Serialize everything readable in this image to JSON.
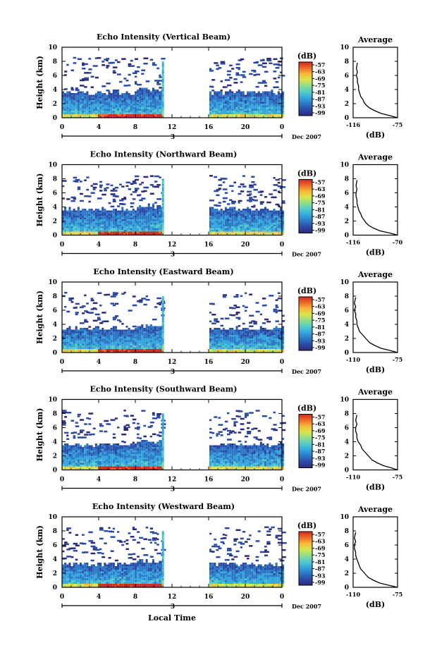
{
  "chart_data": [
    {
      "type": "heatmap",
      "title": "Echo Intensity (Vertical Beam)",
      "ylabel": "Height (km)",
      "xlabel": "",
      "x_ticks": [
        "0",
        "4",
        "8",
        "12",
        "16",
        "20",
        "0"
      ],
      "xlim": [
        0,
        24
      ],
      "y_ticks": [
        "0",
        "2",
        "4",
        "6",
        "8",
        "10"
      ],
      "ylim": [
        0,
        10
      ],
      "date_marker": "3",
      "date_label": "Dec 2007",
      "colorbar_unit": "(dB)",
      "colorbar_ticks": [
        "-57",
        "-63",
        "-69",
        "-75",
        "-81",
        "-87",
        "-93",
        "-99"
      ],
      "data_gap_hours": [
        11,
        16
      ],
      "echo_top_km": 3.5,
      "average_profile": {
        "title": "Average",
        "xlabel": "(dB)",
        "x_ticks": [
          "-116",
          "-75"
        ],
        "xlim": [
          -116,
          -75
        ],
        "y_ticks": [
          "0",
          "2",
          "4",
          "6",
          "8",
          "10"
        ],
        "ylim": [
          0,
          10
        ],
        "x": [
          -75,
          -82,
          -90,
          -96,
          -101,
          -104,
          -106,
          -107,
          -109,
          -110,
          -111,
          -111,
          -112,
          -112,
          -113,
          -112,
          -113,
          -112
        ],
        "y": [
          0.0,
          0.3,
          0.6,
          1.0,
          1.4,
          1.8,
          2.2,
          2.6,
          3.0,
          3.5,
          4.0,
          4.5,
          5.0,
          5.5,
          6.0,
          6.5,
          7.0,
          7.8
        ]
      }
    },
    {
      "type": "heatmap",
      "title": "Echo Intensity (Northward Beam)",
      "ylabel": "Height (km)",
      "xlabel": "",
      "x_ticks": [
        "0",
        "4",
        "8",
        "12",
        "16",
        "20",
        "0"
      ],
      "xlim": [
        0,
        24
      ],
      "y_ticks": [
        "0",
        "2",
        "4",
        "6",
        "8",
        "10"
      ],
      "ylim": [
        0,
        10
      ],
      "date_marker": "3",
      "date_label": "Dec 2007",
      "colorbar_unit": "(dB)",
      "colorbar_ticks": [
        "-57",
        "-63",
        "-69",
        "-75",
        "-81",
        "-87",
        "-93",
        "-99"
      ],
      "data_gap_hours": [
        11,
        16
      ],
      "echo_top_km": 3.6,
      "average_profile": {
        "title": "Average",
        "xlabel": "(dB)",
        "x_ticks": [
          "-116",
          "-70"
        ],
        "xlim": [
          -116,
          -70
        ],
        "y_ticks": [
          "0",
          "2",
          "4",
          "6",
          "8",
          "10"
        ],
        "ylim": [
          0,
          10
        ],
        "x": [
          -70,
          -78,
          -88,
          -95,
          -100,
          -103,
          -105,
          -107,
          -108,
          -110,
          -111,
          -112,
          -112,
          -113,
          -113,
          -112,
          -113,
          -112
        ],
        "y": [
          0.0,
          0.3,
          0.6,
          1.0,
          1.4,
          1.8,
          2.2,
          2.6,
          3.0,
          3.5,
          4.0,
          4.5,
          5.0,
          5.5,
          6.0,
          6.5,
          7.0,
          7.8
        ]
      }
    },
    {
      "type": "heatmap",
      "title": "Echo Intensity (Eastward Beam)",
      "ylabel": "Height (km)",
      "xlabel": "",
      "x_ticks": [
        "0",
        "4",
        "8",
        "12",
        "16",
        "20",
        "0"
      ],
      "xlim": [
        0,
        24
      ],
      "y_ticks": [
        "0",
        "2",
        "4",
        "6",
        "8",
        "10"
      ],
      "ylim": [
        0,
        10
      ],
      "date_marker": "3",
      "date_label": "Dec 2007",
      "colorbar_unit": "(dB)",
      "colorbar_ticks": [
        "-57",
        "-63",
        "-69",
        "-75",
        "-81",
        "-87",
        "-93",
        "-99"
      ],
      "data_gap_hours": [
        11,
        16
      ],
      "echo_top_km": 3.3,
      "average_profile": {
        "title": "Average",
        "xlabel": "(dB)",
        "x_ticks": [
          "-110",
          "-75"
        ],
        "xlim": [
          -110,
          -75
        ],
        "y_ticks": [
          "0",
          "2",
          "4",
          "6",
          "8",
          "10"
        ],
        "ylim": [
          0,
          10
        ],
        "x": [
          -75,
          -81,
          -88,
          -93,
          -97,
          -99,
          -101,
          -103,
          -105,
          -106,
          -107,
          -107,
          -108,
          -108,
          -109,
          -108,
          -109,
          -108
        ],
        "y": [
          0.0,
          0.3,
          0.6,
          1.0,
          1.4,
          1.8,
          2.2,
          2.6,
          3.0,
          3.5,
          4.0,
          4.5,
          5.0,
          5.5,
          6.0,
          6.5,
          7.0,
          7.8
        ]
      }
    },
    {
      "type": "heatmap",
      "title": "Echo Intensity (Southward Beam)",
      "ylabel": "Height (km)",
      "xlabel": "",
      "x_ticks": [
        "0",
        "4",
        "8",
        "12",
        "16",
        "20",
        "0"
      ],
      "xlim": [
        0,
        24
      ],
      "y_ticks": [
        "0",
        "2",
        "4",
        "6",
        "8",
        "10"
      ],
      "ylim": [
        0,
        10
      ],
      "date_marker": "3",
      "date_label": "Dec 2007",
      "colorbar_unit": "(dB)",
      "colorbar_ticks": [
        "-57",
        "-63",
        "-69",
        "-75",
        "-81",
        "-87",
        "-93",
        "-99"
      ],
      "data_gap_hours": [
        11,
        16
      ],
      "echo_top_km": 3.5,
      "average_profile": {
        "title": "Average",
        "xlabel": "(dB)",
        "x_ticks": [
          "-110",
          "-75"
        ],
        "xlim": [
          -110,
          -75
        ],
        "y_ticks": [
          "0",
          "2",
          "4",
          "6",
          "8",
          "10"
        ],
        "ylim": [
          0,
          10
        ],
        "x": [
          -75,
          -80,
          -86,
          -91,
          -95,
          -97,
          -99,
          -101,
          -103,
          -104,
          -106,
          -107,
          -107,
          -108,
          -108,
          -107,
          -108,
          -107
        ],
        "y": [
          0.0,
          0.3,
          0.6,
          1.0,
          1.4,
          1.8,
          2.2,
          2.6,
          3.0,
          3.5,
          4.0,
          4.5,
          5.0,
          5.5,
          6.0,
          6.5,
          7.0,
          7.8
        ]
      }
    },
    {
      "type": "heatmap",
      "title": "Echo Intensity (Westward Beam)",
      "ylabel": "Height (km)",
      "xlabel": "Local Time",
      "x_ticks": [
        "0",
        "4",
        "8",
        "12",
        "16",
        "20",
        "0"
      ],
      "xlim": [
        0,
        24
      ],
      "y_ticks": [
        "0",
        "2",
        "4",
        "6",
        "8",
        "10"
      ],
      "ylim": [
        0,
        10
      ],
      "date_marker": "3",
      "date_label": "Dec 2007",
      "colorbar_unit": "(dB)",
      "colorbar_ticks": [
        "-57",
        "-63",
        "-69",
        "-75",
        "-81",
        "-87",
        "-93",
        "-99"
      ],
      "data_gap_hours": [
        11,
        16
      ],
      "echo_top_km": 3.2,
      "average_profile": {
        "title": "Average",
        "xlabel": "(dB)",
        "x_ticks": [
          "-110",
          "-75"
        ],
        "xlim": [
          -110,
          -75
        ],
        "y_ticks": [
          "0",
          "2",
          "4",
          "6",
          "8",
          "10"
        ],
        "ylim": [
          0,
          10
        ],
        "x": [
          -75,
          -82,
          -89,
          -94,
          -98,
          -100,
          -102,
          -104,
          -105,
          -106,
          -107,
          -108,
          -108,
          -109,
          -109,
          -108,
          -109,
          -108
        ],
        "y": [
          0.0,
          0.3,
          0.6,
          1.0,
          1.4,
          1.8,
          2.2,
          2.6,
          3.0,
          3.5,
          4.0,
          4.5,
          5.0,
          5.5,
          6.0,
          6.5,
          7.0,
          7.8
        ]
      }
    }
  ],
  "colorbar_colors": [
    "#2e2a78",
    "#2b4aa6",
    "#2d77c7",
    "#35a6dc",
    "#53ccc9",
    "#8fdc8c",
    "#d8e64e",
    "#f6b938",
    "#ef6a2a",
    "#cd2a1e"
  ],
  "axis_color": "#000000",
  "background": "#ffffff"
}
